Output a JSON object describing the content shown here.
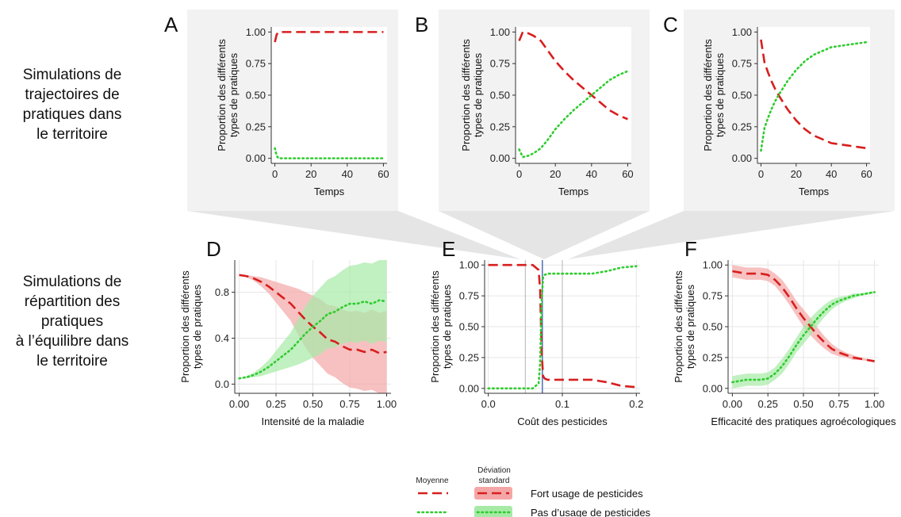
{
  "row_labels": {
    "top": [
      "Simulations de",
      "trajectoires de",
      "pratiques dans",
      "le territoire"
    ],
    "bottom": [
      "Simulations de",
      "répartition des",
      "pratiques",
      "à l’équilibre dans",
      "le territoire"
    ]
  },
  "colors": {
    "high_pesticide": "#d81e1e",
    "no_pesticide": "#2ecc2e",
    "high_band": "#f4a6a6",
    "no_band": "#a6eaa6",
    "panel_bg": "#f2f2f2",
    "grid": "#e6e6e6",
    "funnel": "#dcdcdc",
    "marker_line": "#4a6fb5"
  },
  "legend": {
    "mean_header": "Moyenne",
    "sd_header": [
      "Déviation",
      "standard"
    ],
    "items": [
      {
        "label": "Fort usage de pesticides",
        "series": "high"
      },
      {
        "label": "Pas d’usage de pesticides",
        "series": "none"
      }
    ]
  },
  "chart_data": [
    {
      "panel": "A",
      "type": "line",
      "xlabel": "Temps",
      "ylabel": [
        "Proportion des différents",
        "types de pratiques"
      ],
      "xlim": [
        -2,
        62
      ],
      "ylim": [
        -0.04,
        1.04
      ],
      "x_ticks": [
        0,
        20,
        40,
        60
      ],
      "x_tick_labels": [
        "0",
        "20",
        "40",
        "60"
      ],
      "y_ticks": [
        0,
        0.25,
        0.5,
        0.75,
        1
      ],
      "y_tick_labels": [
        "0.00",
        "0.25",
        "0.50",
        "0.75",
        "1.00"
      ],
      "grid": false,
      "series": [
        {
          "key": "high",
          "x": [
            0,
            1,
            2,
            3,
            5,
            10,
            20,
            30,
            40,
            50,
            60
          ],
          "y": [
            0.92,
            0.98,
            1.0,
            1.0,
            1.0,
            1.0,
            1.0,
            1.0,
            1.0,
            1.0,
            1.0
          ]
        },
        {
          "key": "none",
          "x": [
            0,
            1,
            2,
            3,
            5,
            10,
            20,
            30,
            40,
            50,
            60
          ],
          "y": [
            0.08,
            0.02,
            0.0,
            0.0,
            0.0,
            0.0,
            0.0,
            0.0,
            0.0,
            0.0,
            0.0
          ]
        }
      ]
    },
    {
      "panel": "B",
      "type": "line",
      "xlabel": "Temps",
      "ylabel": [
        "Proportion des différents",
        "types de pratiques"
      ],
      "xlim": [
        -2,
        62
      ],
      "ylim": [
        -0.04,
        1.04
      ],
      "x_ticks": [
        0,
        20,
        40,
        60
      ],
      "x_tick_labels": [
        "0",
        "20",
        "40",
        "60"
      ],
      "y_ticks": [
        0,
        0.25,
        0.5,
        0.75,
        1
      ],
      "y_tick_labels": [
        "0.00",
        "0.25",
        "0.50",
        "0.75",
        "1.00"
      ],
      "grid": false,
      "series": [
        {
          "key": "high",
          "x": [
            0,
            2,
            5,
            8,
            12,
            16,
            20,
            25,
            30,
            35,
            40,
            45,
            50,
            55,
            60
          ],
          "y": [
            0.93,
            1.0,
            0.99,
            0.97,
            0.93,
            0.85,
            0.77,
            0.69,
            0.62,
            0.56,
            0.5,
            0.44,
            0.38,
            0.34,
            0.31
          ]
        },
        {
          "key": "none",
          "x": [
            0,
            2,
            5,
            8,
            12,
            16,
            20,
            25,
            30,
            35,
            40,
            45,
            50,
            55,
            60
          ],
          "y": [
            0.07,
            0.01,
            0.02,
            0.04,
            0.08,
            0.15,
            0.23,
            0.31,
            0.38,
            0.44,
            0.5,
            0.56,
            0.62,
            0.66,
            0.69
          ]
        }
      ]
    },
    {
      "panel": "C",
      "type": "line",
      "xlabel": "Temps",
      "ylabel": [
        "Proportion des différents",
        "types de pratiques"
      ],
      "xlim": [
        -2,
        62
      ],
      "ylim": [
        -0.04,
        1.04
      ],
      "x_ticks": [
        0,
        20,
        40,
        60
      ],
      "x_tick_labels": [
        "0",
        "20",
        "40",
        "60"
      ],
      "y_ticks": [
        0,
        0.25,
        0.5,
        0.75,
        1
      ],
      "y_tick_labels": [
        "0.00",
        "0.25",
        "0.50",
        "0.75",
        "1.00"
      ],
      "grid": false,
      "series": [
        {
          "key": "high",
          "x": [
            0,
            2,
            4,
            6,
            8,
            10,
            15,
            20,
            25,
            30,
            35,
            40,
            45,
            50,
            55,
            60
          ],
          "y": [
            0.94,
            0.76,
            0.68,
            0.61,
            0.55,
            0.5,
            0.39,
            0.3,
            0.23,
            0.18,
            0.15,
            0.12,
            0.11,
            0.1,
            0.09,
            0.08
          ]
        },
        {
          "key": "none",
          "x": [
            0,
            2,
            4,
            6,
            8,
            10,
            15,
            20,
            25,
            30,
            35,
            40,
            45,
            50,
            55,
            60
          ],
          "y": [
            0.06,
            0.24,
            0.32,
            0.39,
            0.45,
            0.5,
            0.61,
            0.7,
            0.77,
            0.82,
            0.85,
            0.88,
            0.89,
            0.9,
            0.91,
            0.92
          ]
        }
      ]
    },
    {
      "panel": "D",
      "type": "line",
      "xlabel": "Intensité de la maladie",
      "ylabel": [
        "Proportion des différents",
        "types de pratiques"
      ],
      "xlim": [
        -0.03,
        1.03
      ],
      "ylim": [
        -0.08,
        1.08
      ],
      "x_ticks": [
        0,
        0.25,
        0.5,
        0.75,
        1
      ],
      "x_tick_labels": [
        "0.00",
        "0.25",
        "0.50",
        "0.75",
        "1.00"
      ],
      "y_ticks": [
        0,
        0.4,
        0.8
      ],
      "y_tick_labels": [
        "0.0",
        "0.4",
        "0.8"
      ],
      "grid": true,
      "series": [
        {
          "key": "high",
          "x": [
            0,
            0.05,
            0.1,
            0.15,
            0.2,
            0.25,
            0.3,
            0.35,
            0.4,
            0.45,
            0.5,
            0.55,
            0.6,
            0.65,
            0.7,
            0.75,
            0.8,
            0.85,
            0.9,
            0.95,
            1.0
          ],
          "y": [
            0.95,
            0.94,
            0.92,
            0.89,
            0.85,
            0.8,
            0.75,
            0.7,
            0.63,
            0.56,
            0.5,
            0.45,
            0.39,
            0.37,
            0.33,
            0.3,
            0.3,
            0.28,
            0.3,
            0.27,
            0.28
          ],
          "sd": [
            0.0,
            0.01,
            0.02,
            0.04,
            0.06,
            0.09,
            0.12,
            0.15,
            0.2,
            0.24,
            0.27,
            0.29,
            0.3,
            0.31,
            0.32,
            0.33,
            0.34,
            0.34,
            0.35,
            0.35,
            0.36
          ]
        },
        {
          "key": "none",
          "x": [
            0,
            0.05,
            0.1,
            0.15,
            0.2,
            0.25,
            0.3,
            0.35,
            0.4,
            0.45,
            0.5,
            0.55,
            0.6,
            0.65,
            0.7,
            0.75,
            0.8,
            0.85,
            0.9,
            0.95,
            1.0
          ],
          "y": [
            0.05,
            0.06,
            0.08,
            0.11,
            0.15,
            0.2,
            0.25,
            0.3,
            0.37,
            0.44,
            0.5,
            0.55,
            0.61,
            0.63,
            0.67,
            0.7,
            0.7,
            0.72,
            0.7,
            0.73,
            0.72
          ],
          "sd": [
            0.0,
            0.01,
            0.02,
            0.04,
            0.06,
            0.09,
            0.12,
            0.15,
            0.2,
            0.24,
            0.27,
            0.29,
            0.3,
            0.31,
            0.32,
            0.33,
            0.34,
            0.34,
            0.35,
            0.35,
            0.36
          ]
        }
      ]
    },
    {
      "panel": "E",
      "type": "line",
      "xlabel": "Coût des pesticides",
      "ylabel": [
        "Proportion des différents",
        "types de pratiques"
      ],
      "xlim": [
        -0.005,
        0.205
      ],
      "ylim": [
        -0.04,
        1.04
      ],
      "x_ticks": [
        0,
        0.1,
        0.2
      ],
      "x_tick_labels": [
        "0.0",
        "0.1",
        "0.2"
      ],
      "y_ticks": [
        0,
        0.25,
        0.5,
        0.75,
        1
      ],
      "y_tick_labels": [
        "0.00",
        "0.25",
        "0.50",
        "0.75",
        "1.00"
      ],
      "grid": true,
      "marker_lines": [
        0.05,
        0.073,
        0.1
      ],
      "series": [
        {
          "key": "high",
          "x": [
            0,
            0.02,
            0.04,
            0.06,
            0.068,
            0.07,
            0.072,
            0.074,
            0.076,
            0.08,
            0.1,
            0.12,
            0.14,
            0.16,
            0.18,
            0.2
          ],
          "y": [
            1.0,
            1.0,
            1.0,
            1.0,
            0.96,
            0.8,
            0.3,
            0.1,
            0.08,
            0.07,
            0.07,
            0.07,
            0.07,
            0.05,
            0.02,
            0.01
          ]
        },
        {
          "key": "none",
          "x": [
            0,
            0.02,
            0.04,
            0.06,
            0.068,
            0.07,
            0.072,
            0.074,
            0.076,
            0.08,
            0.1,
            0.12,
            0.14,
            0.16,
            0.18,
            0.2
          ],
          "y": [
            0.0,
            0.0,
            0.0,
            0.0,
            0.04,
            0.2,
            0.7,
            0.9,
            0.92,
            0.93,
            0.93,
            0.93,
            0.93,
            0.95,
            0.98,
            0.99
          ]
        }
      ]
    },
    {
      "panel": "F",
      "type": "line",
      "xlabel": "Efficacité des pratiques agroécologiques",
      "ylabel": [
        "Proportion des différents",
        "types de pratiques"
      ],
      "xlim": [
        -0.03,
        1.03
      ],
      "ylim": [
        -0.04,
        1.04
      ],
      "x_ticks": [
        0,
        0.25,
        0.5,
        0.75,
        1
      ],
      "x_tick_labels": [
        "0.00",
        "0.25",
        "0.50",
        "0.75",
        "1.00"
      ],
      "y_ticks": [
        0,
        0.25,
        0.5,
        0.75,
        1
      ],
      "y_tick_labels": [
        "0.00",
        "0.25",
        "0.50",
        "0.75",
        "1.00"
      ],
      "grid": true,
      "series": [
        {
          "key": "high",
          "x": [
            0,
            0.05,
            0.1,
            0.15,
            0.2,
            0.25,
            0.3,
            0.35,
            0.4,
            0.45,
            0.5,
            0.55,
            0.6,
            0.65,
            0.7,
            0.75,
            0.8,
            0.85,
            0.9,
            0.95,
            1.0
          ],
          "y": [
            0.95,
            0.94,
            0.93,
            0.93,
            0.93,
            0.92,
            0.88,
            0.82,
            0.74,
            0.65,
            0.57,
            0.5,
            0.43,
            0.37,
            0.32,
            0.29,
            0.27,
            0.25,
            0.24,
            0.23,
            0.22
          ],
          "sd": [
            0.05,
            0.05,
            0.05,
            0.05,
            0.05,
            0.05,
            0.05,
            0.06,
            0.06,
            0.06,
            0.07,
            0.07,
            0.06,
            0.05,
            0.04,
            0.03,
            0.02,
            0.02,
            0.01,
            0.01,
            0.01
          ]
        },
        {
          "key": "none",
          "x": [
            0,
            0.05,
            0.1,
            0.15,
            0.2,
            0.25,
            0.3,
            0.35,
            0.4,
            0.45,
            0.5,
            0.55,
            0.6,
            0.65,
            0.7,
            0.75,
            0.8,
            0.85,
            0.9,
            0.95,
            1.0
          ],
          "y": [
            0.05,
            0.06,
            0.07,
            0.07,
            0.07,
            0.08,
            0.12,
            0.18,
            0.26,
            0.35,
            0.43,
            0.5,
            0.57,
            0.63,
            0.68,
            0.71,
            0.73,
            0.75,
            0.76,
            0.77,
            0.78
          ],
          "sd": [
            0.05,
            0.05,
            0.05,
            0.05,
            0.05,
            0.05,
            0.05,
            0.06,
            0.06,
            0.06,
            0.07,
            0.07,
            0.06,
            0.05,
            0.04,
            0.03,
            0.02,
            0.02,
            0.01,
            0.01,
            0.01
          ]
        }
      ]
    }
  ]
}
